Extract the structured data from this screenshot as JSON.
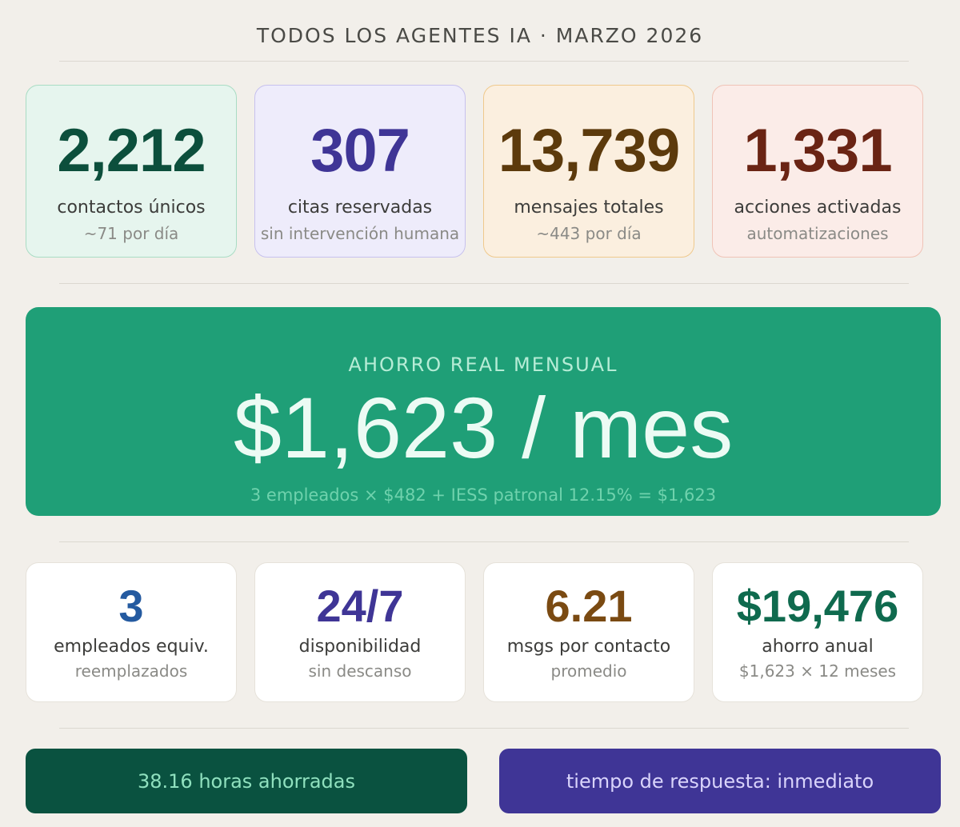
{
  "title": "TODOS LOS AGENTES IA · MARZO 2026",
  "top_stats": [
    {
      "value": "2,212",
      "label": "contactos únicos",
      "sub": "~71 por día"
    },
    {
      "value": "307",
      "label": "citas reservadas",
      "sub": "sin intervención humana"
    },
    {
      "value": "13,739",
      "label": "mensajes totales",
      "sub": "~443 por día"
    },
    {
      "value": "1,331",
      "label": "acciones activadas",
      "sub": "automatizaciones"
    }
  ],
  "hero": {
    "kicker": "AHORRO REAL MENSUAL",
    "value": "$1,623 / mes",
    "formula": "3 empleados × $482 + IESS patronal 12.15% = $1,623"
  },
  "bottom_stats": [
    {
      "value": "3",
      "label": "empleados equiv.",
      "sub": "reemplazados"
    },
    {
      "value": "24/7",
      "label": "disponibilidad",
      "sub": "sin descanso"
    },
    {
      "value": "6.21",
      "label": "msgs por contacto",
      "sub": "promedio"
    },
    {
      "value": "$19,476",
      "label": "ahorro anual",
      "sub": "$1,623 × 12 meses"
    }
  ],
  "footer": {
    "hours": "38.16 horas ahorradas",
    "response": "tiempo de respuesta: inmediato"
  },
  "colors": {
    "background": "#f2efea",
    "hero_green": "#1f9f77",
    "dark_green": "#0a5240",
    "purple": "#3f3596",
    "brown": "#5c3a0c",
    "maroon": "#6a2414",
    "blue": "#245aa0"
  }
}
